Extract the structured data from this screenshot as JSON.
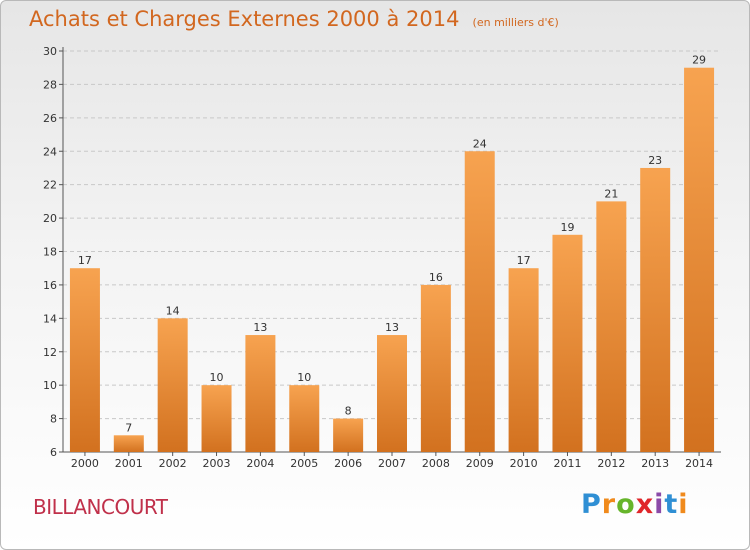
{
  "header": {
    "title": "Achats et Charges Externes 2000 à 2014",
    "subtitle": "(en milliers d'€)"
  },
  "footer": {
    "city": "BILLANCOURT",
    "logo_text": "Proxiti"
  },
  "colors": {
    "title": "#d2671f",
    "bar_light": "#f7a350",
    "bar_dark": "#d2711f",
    "city": "#c0304a",
    "logo_letters": [
      "#2f8fd4",
      "#f08a1c",
      "#66b52b",
      "#e0262a",
      "#8b4aa8",
      "#2f8fd4",
      "#f08a1c"
    ]
  },
  "chart_data": {
    "type": "bar",
    "categories": [
      "2000",
      "2001",
      "2002",
      "2003",
      "2004",
      "2005",
      "2006",
      "2007",
      "2008",
      "2009",
      "2010",
      "2011",
      "2012",
      "2013",
      "2014"
    ],
    "values": [
      17,
      7,
      14,
      10,
      13,
      10,
      8,
      13,
      16,
      24,
      17,
      19,
      21,
      23,
      29
    ],
    "data_labels": [
      "17",
      "7",
      "14",
      "10",
      "13",
      "10",
      "8",
      "13",
      "16",
      "24",
      "17",
      "19",
      "21",
      "23",
      "29"
    ],
    "title": "Achats et Charges Externes 2000 à 2014",
    "subtitle": "(en milliers d'€)",
    "xlabel": "",
    "ylabel": "",
    "ylim": [
      6,
      30
    ],
    "yticks": [
      6,
      8,
      10,
      12,
      14,
      16,
      18,
      20,
      22,
      24,
      26,
      28,
      30
    ],
    "grid": true,
    "legend": "none"
  }
}
